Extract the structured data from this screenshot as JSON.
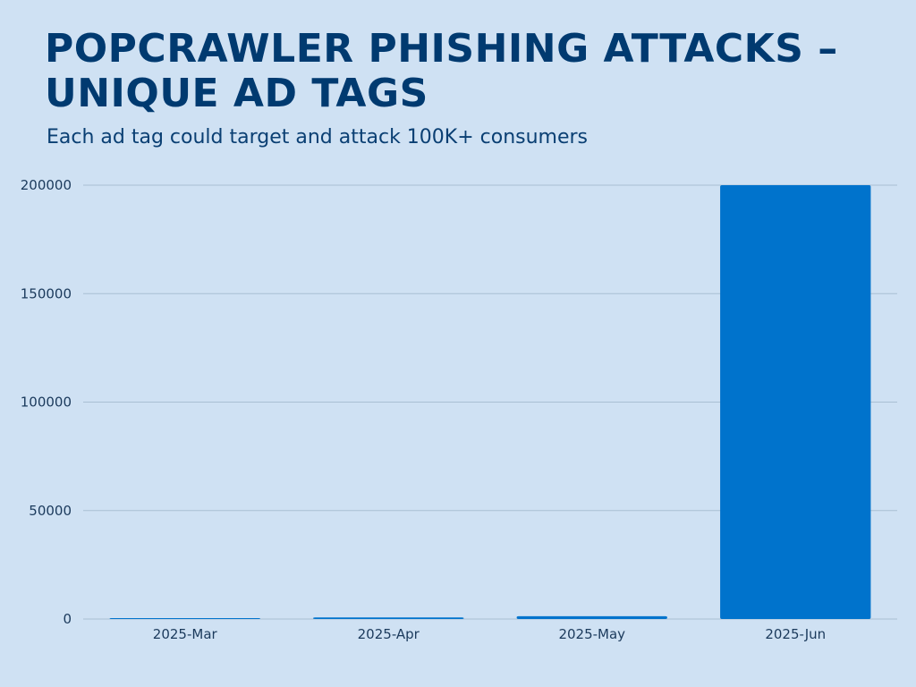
{
  "chart_data": {
    "type": "bar",
    "title": "POPCRAWLER PHISHING ATTACKS – UNIQUE AD TAGS",
    "subtitle": "Each ad tag could target and attack 100K+ consumers",
    "xlabel": "",
    "ylabel": "",
    "categories": [
      "2025-Mar",
      "2025-Apr",
      "2025-May",
      "2025-Jun"
    ],
    "values": [
      150,
      700,
      1300,
      200000
    ],
    "ylim": [
      0,
      200000
    ],
    "yticks": [
      0,
      50000,
      100000,
      150000,
      200000
    ],
    "grid": true,
    "legend": "none",
    "colors": {
      "bar": "#0073cc",
      "grid": "#a9bfd3",
      "background": "#cfe1f3",
      "title": "#003a70",
      "text": "#1b3a5c"
    }
  }
}
